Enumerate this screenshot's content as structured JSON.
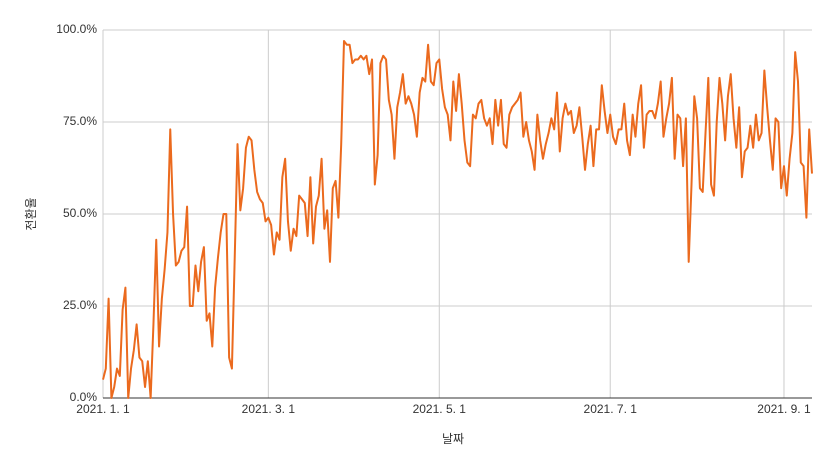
{
  "chart_data": {
    "type": "line",
    "color": "#eb6a1e",
    "grid": true,
    "x_label": "날짜",
    "y_label": "전환율",
    "categories": [
      "2021. 1. 1",
      null,
      null,
      null,
      null,
      null,
      null,
      null,
      null,
      null,
      null,
      null,
      null,
      null,
      null,
      null,
      null,
      null,
      null,
      null,
      null,
      null,
      null,
      null,
      null,
      null,
      null,
      null,
      null,
      null,
      null,
      null,
      null,
      null,
      null,
      null,
      null,
      null,
      null,
      null,
      null,
      null,
      null,
      null,
      null,
      null,
      null,
      null,
      null,
      null,
      null,
      null,
      null,
      null,
      null,
      null,
      null,
      null,
      null,
      "2021. 3. 1",
      null,
      null,
      null,
      null,
      null,
      null,
      null,
      null,
      null,
      null,
      null,
      null,
      null,
      null,
      null,
      null,
      null,
      null,
      null,
      null,
      null,
      null,
      null,
      null,
      null,
      null,
      null,
      null,
      null,
      null,
      null,
      null,
      null,
      null,
      null,
      null,
      null,
      null,
      null,
      null,
      null,
      null,
      null,
      null,
      null,
      null,
      null,
      null,
      null,
      null,
      null,
      null,
      null,
      null,
      null,
      null,
      null,
      null,
      null,
      null,
      "2021. 5. 1",
      null,
      null,
      null,
      null,
      null,
      null,
      null,
      null,
      null,
      null,
      null,
      null,
      null,
      null,
      null,
      null,
      null,
      null,
      null,
      null,
      null,
      null,
      null,
      null,
      null,
      null,
      null,
      null,
      null,
      null,
      null,
      null,
      null,
      null,
      null,
      null,
      null,
      null,
      null,
      null,
      null,
      null,
      null,
      null,
      null,
      null,
      null,
      null,
      null,
      null,
      null,
      null,
      null,
      null,
      null,
      null,
      null,
      null,
      null,
      null,
      "2021. 7. 1",
      null,
      null,
      null,
      null,
      null,
      null,
      null,
      null,
      null,
      null,
      null,
      null,
      null,
      null,
      null,
      null,
      null,
      null,
      null,
      null,
      null,
      null,
      null,
      null,
      null,
      null,
      null,
      null,
      null,
      null,
      null,
      null,
      null,
      null,
      null,
      null,
      null,
      null,
      null,
      null,
      null,
      null,
      null,
      null,
      null,
      null,
      null,
      null,
      null,
      null,
      null,
      null,
      null,
      null,
      null,
      null,
      null,
      null,
      null,
      null,
      null,
      "2021. 9. 1",
      null,
      null,
      null,
      null,
      null,
      null,
      null,
      null,
      null,
      null
    ],
    "values": [
      5,
      8,
      27,
      0,
      3,
      8,
      6,
      24,
      30,
      0,
      8,
      13,
      20,
      11,
      10,
      3,
      10,
      0,
      20,
      43,
      14,
      27,
      35,
      45,
      73,
      50,
      36,
      37,
      40,
      41,
      52,
      25,
      25,
      36,
      29,
      37,
      41,
      21,
      23,
      14,
      30,
      38,
      45,
      50,
      50,
      11,
      8,
      38,
      69,
      51,
      57,
      68,
      71,
      70,
      62,
      56,
      54,
      53,
      48,
      49,
      47,
      39,
      45,
      43,
      60,
      65,
      48,
      40,
      46,
      44,
      55,
      54,
      53,
      44,
      60,
      42,
      52,
      55,
      65,
      46,
      51,
      37,
      57,
      59,
      49,
      69,
      97,
      96,
      96,
      91,
      92,
      92,
      93,
      92,
      93,
      88,
      92,
      58,
      66,
      91,
      93,
      92,
      81,
      77,
      65,
      79,
      83,
      88,
      80,
      82,
      80,
      77,
      71,
      83,
      87,
      86,
      96,
      86,
      85,
      91,
      92,
      84,
      79,
      77,
      70,
      86,
      78,
      88,
      80,
      70,
      64,
      63,
      77,
      76,
      80,
      81,
      76,
      74,
      76,
      69,
      81,
      74,
      81,
      69,
      68,
      77,
      79,
      80,
      81,
      83,
      71,
      75,
      70,
      67,
      62,
      77,
      70,
      65,
      69,
      72,
      76,
      73,
      83,
      67,
      76,
      80,
      77,
      78,
      72,
      74,
      79,
      71,
      62,
      69,
      74,
      63,
      73,
      73,
      85,
      78,
      72,
      77,
      71,
      69,
      73,
      73,
      80,
      70,
      66,
      77,
      71,
      80,
      85,
      68,
      77,
      78,
      78,
      76,
      80,
      86,
      71,
      76,
      80,
      87,
      65,
      77,
      76,
      63,
      76,
      37,
      58,
      82,
      76,
      57,
      56,
      72,
      87,
      58,
      55,
      75,
      87,
      80,
      70,
      82,
      88,
      76,
      68,
      79,
      60,
      67,
      68,
      74,
      68,
      77,
      70,
      72,
      89,
      79,
      70,
      62,
      76,
      75,
      57,
      63,
      55,
      65,
      72,
      94,
      86,
      64,
      63,
      49,
      73,
      61
    ],
    "ylim": [
      0,
      100
    ],
    "yticks": [
      {
        "value": 0,
        "label": "0.0%"
      },
      {
        "value": 25,
        "label": "25.0%"
      },
      {
        "value": 50,
        "label": "50.0%"
      },
      {
        "value": 75,
        "label": "75.0%"
      },
      {
        "value": 100,
        "label": "100.0%"
      }
    ]
  }
}
